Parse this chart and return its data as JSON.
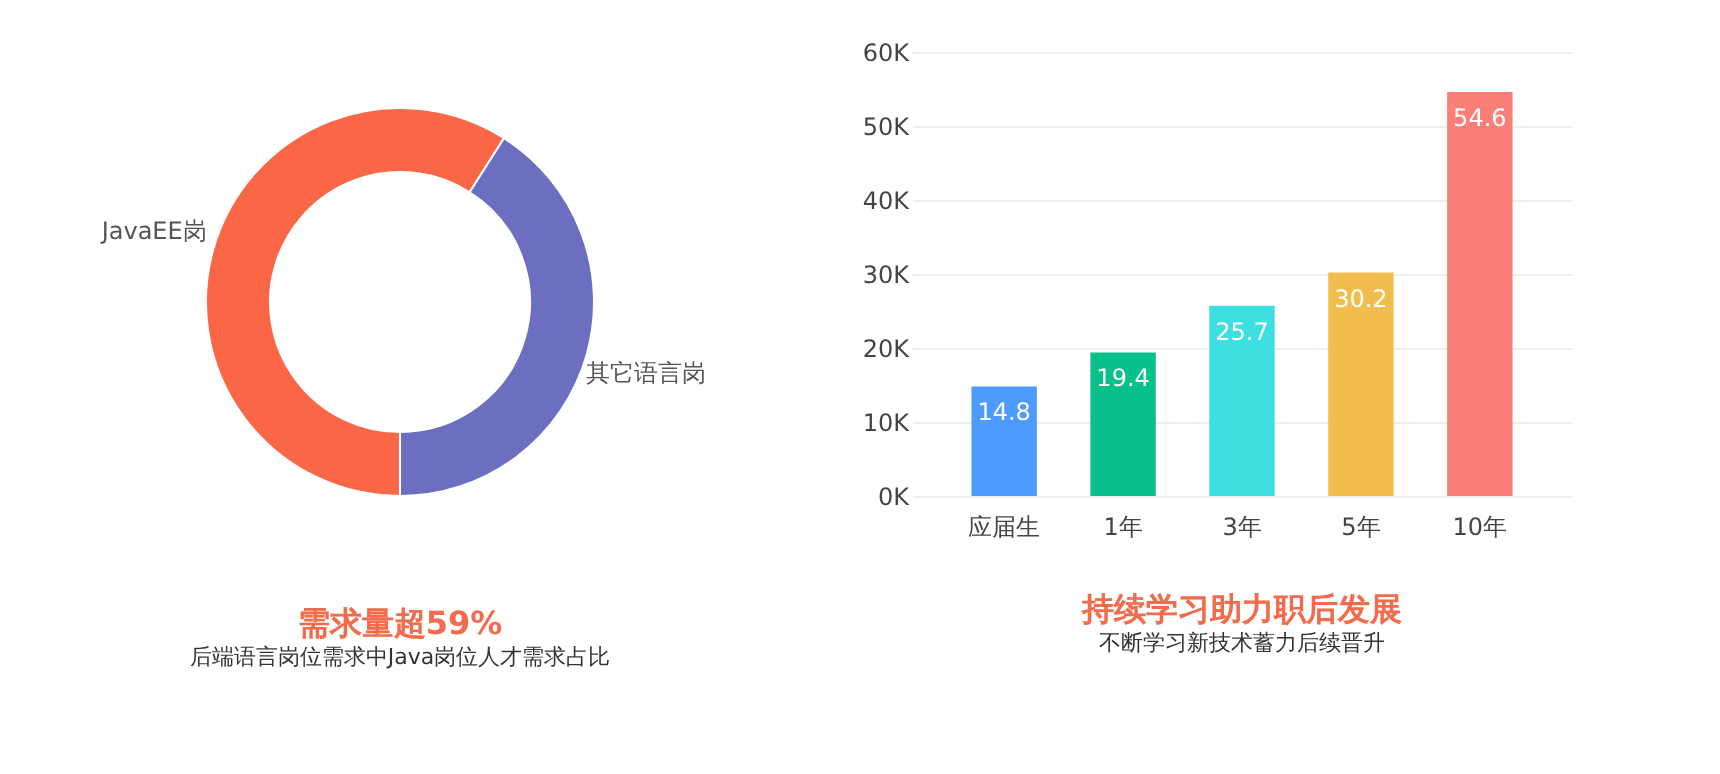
{
  "chart_data": [
    {
      "type": "donut",
      "title": "需求量超59%",
      "subtitle": "后端语言岗位需求中Java岗位人才需求占比",
      "categories": [
        "JavaEE岗",
        "其它语言岗"
      ],
      "values": [
        59,
        41
      ],
      "colors": [
        "#f96747",
        "#6c6fbf"
      ],
      "legend": false
    },
    {
      "type": "bar",
      "title": "持续学习助力职后发展",
      "subtitle": "不断学习新技术蓄力后续晋升",
      "categories": [
        "应届生",
        "1年",
        "3年",
        "5年",
        "10年"
      ],
      "values": [
        14.8,
        19.4,
        25.7,
        30.2,
        54.6
      ],
      "colors": [
        "#4e9bff",
        "#07c08a",
        "#3ddfe0",
        "#f1bd4c",
        "#f97f78"
      ],
      "ylim": [
        0,
        60
      ],
      "yticks": [
        {
          "value": 0,
          "label": "0K"
        },
        {
          "value": 10,
          "label": "10K"
        },
        {
          "value": 20,
          "label": "20K"
        },
        {
          "value": 30,
          "label": "30K"
        },
        {
          "value": 40,
          "label": "40K"
        },
        {
          "value": 50,
          "label": "50K"
        },
        {
          "value": 60,
          "label": "60K"
        }
      ],
      "grid": "y",
      "data_labels": true
    }
  ]
}
